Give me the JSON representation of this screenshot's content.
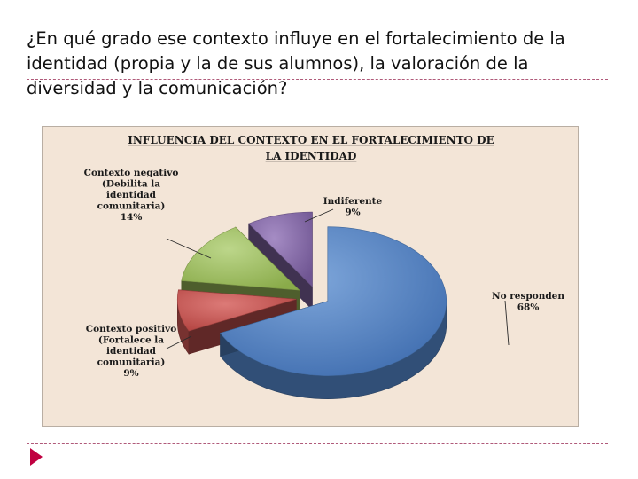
{
  "slide": {
    "question_line1": "¿En qué grado ese contexto influye en el fortalecimiento de la",
    "question_line2": "identidad (propia y la de sus alumnos), la valoración de la",
    "question_line3": "diversidad y la comunicación?"
  },
  "colors": {
    "background": "#f3e5d7",
    "no_responden": "#4f7fc0",
    "contexto_positivo": "#c0504d",
    "contexto_negativo": "#9bbb59",
    "indiferente": "#8064a2",
    "accent_rule": "#b05a7a",
    "nav_arrow": "#c00040"
  },
  "chart_data": {
    "type": "pie",
    "style": "3d-exploded",
    "title_line1": "INFLUENCIA  DEL  CONTEXTO  EN  EL  FORTALECIMIENTO  DE",
    "title_line2": "LA  IDENTIDAD",
    "legend": "none",
    "slices": [
      {
        "key": "no_responden",
        "label_lines": [
          "No responden",
          "68%"
        ],
        "value": 68
      },
      {
        "key": "contexto_positivo",
        "label_lines": [
          "Contexto positivo",
          "(Fortalece la",
          "identidad",
          "comunitaria)",
          "9%"
        ],
        "value": 9
      },
      {
        "key": "contexto_negativo",
        "label_lines": [
          "Contexto negativo",
          "(Debilita la",
          "identidad",
          "comunitaria)",
          "14%"
        ],
        "value": 14
      },
      {
        "key": "indiferente",
        "label_lines": [
          "Indiferente",
          "9%"
        ],
        "value": 9
      }
    ]
  }
}
